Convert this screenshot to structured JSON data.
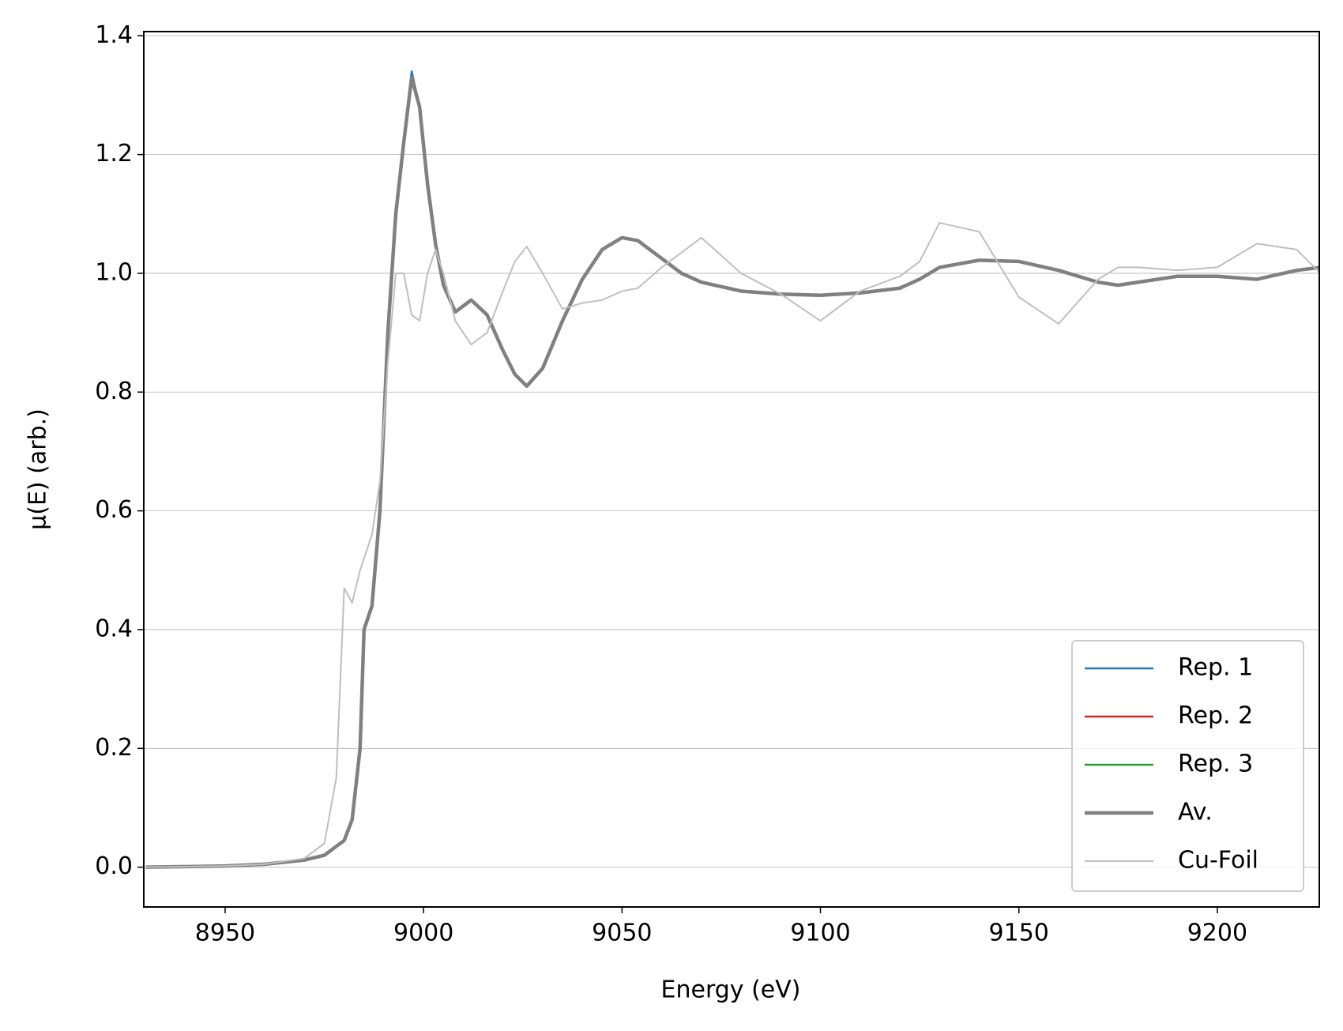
{
  "chart_data": {
    "type": "line",
    "x_label": "Energy (eV)",
    "y_label": "μ(E) (arb.)",
    "x": [
      8930,
      8950,
      8960,
      8970,
      8975,
      8978,
      8980,
      8982,
      8984,
      8985,
      8987,
      8989,
      8991,
      8993,
      8995,
      8997,
      8999,
      9001,
      9003,
      9005,
      9008,
      9012,
      9016,
      9020,
      9023,
      9026,
      9030,
      9035,
      9040,
      9045,
      9050,
      9054,
      9060,
      9065,
      9070,
      9080,
      9090,
      9100,
      9110,
      9120,
      9125,
      9130,
      9140,
      9150,
      9160,
      9170,
      9175,
      9180,
      9190,
      9200,
      9210,
      9220,
      9226
    ],
    "series": [
      {
        "name": "Rep. 1",
        "color": "#1f77b4",
        "width": 2.5,
        "values": [
          0.0,
          0.002,
          0.005,
          0.012,
          0.02,
          0.035,
          0.045,
          0.08,
          0.2,
          0.4,
          0.44,
          0.6,
          0.9,
          1.1,
          1.22,
          1.34,
          1.28,
          1.15,
          1.05,
          0.98,
          0.935,
          0.955,
          0.93,
          0.87,
          0.83,
          0.81,
          0.84,
          0.92,
          0.99,
          1.04,
          1.06,
          1.055,
          1.025,
          1.0,
          0.985,
          0.97,
          0.965,
          0.963,
          0.967,
          0.975,
          0.99,
          1.01,
          1.022,
          1.02,
          1.005,
          0.985,
          0.98,
          0.985,
          0.995,
          0.995,
          0.99,
          1.005,
          1.01
        ]
      },
      {
        "name": "Rep. 2",
        "color": "#d62728",
        "width": 2.5,
        "values": [
          0.0,
          0.002,
          0.005,
          0.012,
          0.02,
          0.035,
          0.045,
          0.08,
          0.2,
          0.4,
          0.44,
          0.6,
          0.9,
          1.1,
          1.22,
          1.33,
          1.28,
          1.15,
          1.05,
          0.98,
          0.935,
          0.955,
          0.93,
          0.87,
          0.83,
          0.81,
          0.84,
          0.92,
          0.99,
          1.04,
          1.06,
          1.055,
          1.025,
          1.0,
          0.985,
          0.97,
          0.965,
          0.963,
          0.968,
          0.975,
          0.99,
          1.01,
          1.022,
          1.02,
          1.005,
          0.985,
          0.98,
          0.985,
          0.995,
          0.995,
          0.99,
          1.005,
          1.01
        ]
      },
      {
        "name": "Rep. 3",
        "color": "#2ca02c",
        "width": 2.5,
        "values": [
          0.0,
          0.002,
          0.005,
          0.012,
          0.02,
          0.035,
          0.045,
          0.08,
          0.2,
          0.4,
          0.44,
          0.6,
          0.9,
          1.1,
          1.22,
          1.33,
          1.28,
          1.15,
          1.05,
          0.98,
          0.935,
          0.955,
          0.93,
          0.87,
          0.83,
          0.81,
          0.84,
          0.92,
          0.99,
          1.04,
          1.06,
          1.055,
          1.025,
          1.0,
          0.985,
          0.97,
          0.965,
          0.963,
          0.967,
          0.975,
          0.99,
          1.01,
          1.022,
          1.02,
          1.005,
          0.985,
          0.98,
          0.985,
          0.995,
          0.995,
          0.99,
          1.005,
          1.01
        ]
      },
      {
        "name": "Av.",
        "color": "#808080",
        "width": 4.5,
        "values": [
          0.0,
          0.002,
          0.005,
          0.012,
          0.02,
          0.035,
          0.045,
          0.08,
          0.2,
          0.4,
          0.44,
          0.6,
          0.9,
          1.1,
          1.22,
          1.33,
          1.28,
          1.15,
          1.05,
          0.98,
          0.935,
          0.955,
          0.93,
          0.87,
          0.83,
          0.81,
          0.84,
          0.92,
          0.99,
          1.04,
          1.06,
          1.055,
          1.025,
          1.0,
          0.985,
          0.97,
          0.965,
          0.963,
          0.967,
          0.975,
          0.99,
          1.01,
          1.022,
          1.02,
          1.005,
          0.985,
          0.98,
          0.985,
          0.995,
          0.995,
          0.99,
          1.005,
          1.01
        ]
      },
      {
        "name": "Cu-Foil",
        "color": "#bfbfbf",
        "width": 2,
        "values": [
          0.0,
          0.002,
          0.005,
          0.015,
          0.04,
          0.15,
          0.47,
          0.445,
          0.5,
          0.52,
          0.56,
          0.65,
          0.85,
          1.0,
          1.0,
          0.93,
          0.92,
          1.0,
          1.04,
          1.0,
          0.92,
          0.88,
          0.9,
          0.97,
          1.02,
          1.045,
          1.0,
          0.94,
          0.95,
          0.955,
          0.97,
          0.975,
          1.01,
          1.035,
          1.06,
          1.0,
          0.965,
          0.92,
          0.97,
          0.995,
          1.02,
          1.085,
          1.07,
          0.96,
          0.915,
          0.99,
          1.01,
          1.01,
          1.005,
          1.01,
          1.05,
          1.04,
          1.0
        ]
      }
    ],
    "xlim": [
      8929.5,
      9225.7
    ],
    "xticks": [
      8950,
      9000,
      9050,
      9100,
      9150,
      9200
    ],
    "ylim": [
      -0.067,
      1.407
    ],
    "yticks": [
      {
        "value": 0,
        "label": "0.0"
      },
      0.2,
      0.4,
      0.6,
      0.8,
      {
        "value": 1,
        "label": "1.0"
      },
      1.2,
      1.4
    ],
    "grid": "y",
    "legend": "lower right"
  }
}
